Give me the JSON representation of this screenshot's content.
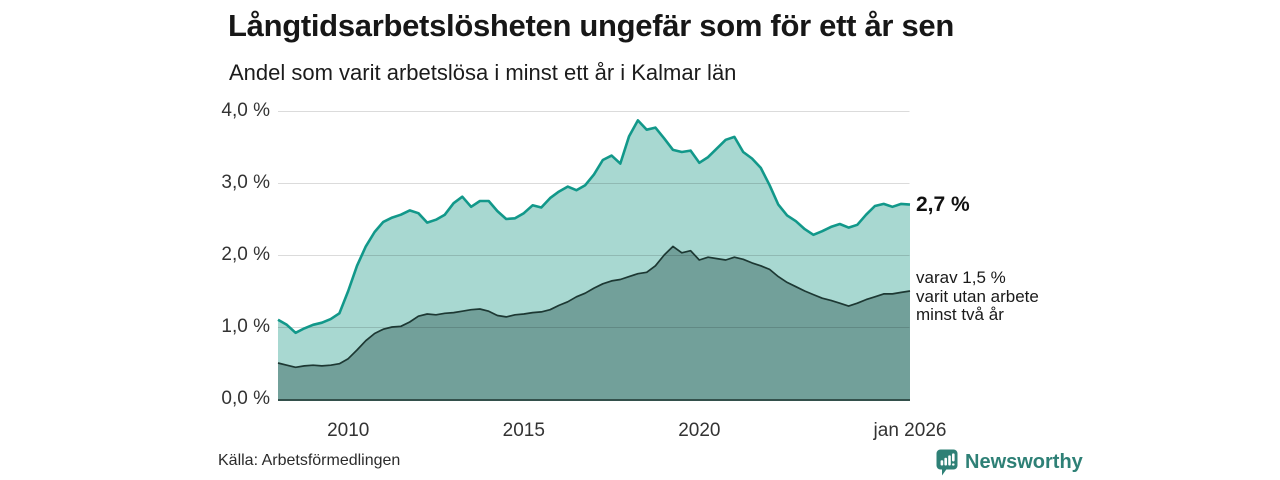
{
  "chart_data": {
    "type": "area",
    "title": "Långtidsarbetslösheten ungefär som för ett år sen",
    "subtitle": "Andel som varit arbetslösa i minst ett år i Kalmar län",
    "source": "Källa: Arbetsförmedlingen",
    "grid": true,
    "legend_position": "none",
    "colors": {
      "line_one_year": "#12988a",
      "fill_one_year": "#a8d8d1",
      "line_two_years": "#1d3833",
      "fill_two_years": "#72a09a",
      "gridline": "rgba(0,0,0,0.14)",
      "baseline": "#33504b"
    },
    "y_axis": {
      "range": [
        0,
        4
      ],
      "unit": "%",
      "ticks": [
        {
          "value": 0,
          "label": "0,0 %"
        },
        {
          "value": 1,
          "label": "1,0 %"
        },
        {
          "value": 2,
          "label": "2,0 %"
        },
        {
          "value": 3,
          "label": "3,0 %"
        },
        {
          "value": 4,
          "label": "4,0 %"
        }
      ]
    },
    "x_axis": {
      "range": [
        2008,
        2026
      ],
      "unit": "year",
      "ticks": [
        {
          "value": 2010,
          "label": "2010"
        },
        {
          "value": 2015,
          "label": "2015"
        },
        {
          "value": 2020,
          "label": "2020"
        },
        {
          "value": 2026,
          "label": "jan 2026"
        }
      ]
    },
    "series": [
      {
        "name": "Arbetslösa minst ett år",
        "latest_value": 2.7,
        "points": [
          [
            2008.0,
            1.1
          ],
          [
            2008.25,
            1.03
          ],
          [
            2008.5,
            0.92
          ],
          [
            2008.75,
            0.98
          ],
          [
            2009.0,
            1.03
          ],
          [
            2009.25,
            1.06
          ],
          [
            2009.5,
            1.11
          ],
          [
            2009.75,
            1.19
          ],
          [
            2010.0,
            1.5
          ],
          [
            2010.25,
            1.85
          ],
          [
            2010.5,
            2.12
          ],
          [
            2010.75,
            2.32
          ],
          [
            2011.0,
            2.46
          ],
          [
            2011.25,
            2.52
          ],
          [
            2011.5,
            2.56
          ],
          [
            2011.75,
            2.62
          ],
          [
            2012.0,
            2.58
          ],
          [
            2012.25,
            2.45
          ],
          [
            2012.5,
            2.49
          ],
          [
            2012.75,
            2.56
          ],
          [
            2013.0,
            2.72
          ],
          [
            2013.25,
            2.81
          ],
          [
            2013.5,
            2.67
          ],
          [
            2013.75,
            2.75
          ],
          [
            2014.0,
            2.75
          ],
          [
            2014.25,
            2.61
          ],
          [
            2014.5,
            2.5
          ],
          [
            2014.75,
            2.51
          ],
          [
            2015.0,
            2.58
          ],
          [
            2015.25,
            2.69
          ],
          [
            2015.5,
            2.66
          ],
          [
            2015.75,
            2.79
          ],
          [
            2016.0,
            2.88
          ],
          [
            2016.25,
            2.95
          ],
          [
            2016.5,
            2.9
          ],
          [
            2016.75,
            2.97
          ],
          [
            2017.0,
            3.12
          ],
          [
            2017.25,
            3.32
          ],
          [
            2017.5,
            3.38
          ],
          [
            2017.75,
            3.27
          ],
          [
            2018.0,
            3.65
          ],
          [
            2018.25,
            3.87
          ],
          [
            2018.5,
            3.74
          ],
          [
            2018.75,
            3.77
          ],
          [
            2019.0,
            3.62
          ],
          [
            2019.25,
            3.46
          ],
          [
            2019.5,
            3.43
          ],
          [
            2019.75,
            3.45
          ],
          [
            2020.0,
            3.28
          ],
          [
            2020.25,
            3.36
          ],
          [
            2020.5,
            3.48
          ],
          [
            2020.75,
            3.6
          ],
          [
            2021.0,
            3.64
          ],
          [
            2021.25,
            3.43
          ],
          [
            2021.5,
            3.34
          ],
          [
            2021.75,
            3.21
          ],
          [
            2022.0,
            2.97
          ],
          [
            2022.25,
            2.7
          ],
          [
            2022.5,
            2.55
          ],
          [
            2022.75,
            2.47
          ],
          [
            2023.0,
            2.36
          ],
          [
            2023.25,
            2.28
          ],
          [
            2023.5,
            2.33
          ],
          [
            2023.75,
            2.39
          ],
          [
            2024.0,
            2.43
          ],
          [
            2024.25,
            2.38
          ],
          [
            2024.5,
            2.42
          ],
          [
            2024.75,
            2.56
          ],
          [
            2025.0,
            2.68
          ],
          [
            2025.25,
            2.71
          ],
          [
            2025.5,
            2.67
          ],
          [
            2025.75,
            2.71
          ],
          [
            2026.0,
            2.7
          ]
        ]
      },
      {
        "name": "Arbetslösa minst två år",
        "latest_value": 1.5,
        "points": [
          [
            2008.0,
            0.5
          ],
          [
            2008.25,
            0.47
          ],
          [
            2008.5,
            0.44
          ],
          [
            2008.75,
            0.46
          ],
          [
            2009.0,
            0.47
          ],
          [
            2009.25,
            0.46
          ],
          [
            2009.5,
            0.47
          ],
          [
            2009.75,
            0.49
          ],
          [
            2010.0,
            0.56
          ],
          [
            2010.25,
            0.68
          ],
          [
            2010.5,
            0.81
          ],
          [
            2010.75,
            0.91
          ],
          [
            2011.0,
            0.97
          ],
          [
            2011.25,
            1.0
          ],
          [
            2011.5,
            1.01
          ],
          [
            2011.75,
            1.07
          ],
          [
            2012.0,
            1.15
          ],
          [
            2012.25,
            1.18
          ],
          [
            2012.5,
            1.17
          ],
          [
            2012.75,
            1.19
          ],
          [
            2013.0,
            1.2
          ],
          [
            2013.25,
            1.22
          ],
          [
            2013.5,
            1.24
          ],
          [
            2013.75,
            1.25
          ],
          [
            2014.0,
            1.22
          ],
          [
            2014.25,
            1.16
          ],
          [
            2014.5,
            1.14
          ],
          [
            2014.75,
            1.17
          ],
          [
            2015.0,
            1.18
          ],
          [
            2015.25,
            1.2
          ],
          [
            2015.5,
            1.21
          ],
          [
            2015.75,
            1.24
          ],
          [
            2016.0,
            1.3
          ],
          [
            2016.25,
            1.35
          ],
          [
            2016.5,
            1.42
          ],
          [
            2016.75,
            1.47
          ],
          [
            2017.0,
            1.54
          ],
          [
            2017.25,
            1.6
          ],
          [
            2017.5,
            1.64
          ],
          [
            2017.75,
            1.66
          ],
          [
            2018.0,
            1.7
          ],
          [
            2018.25,
            1.74
          ],
          [
            2018.5,
            1.76
          ],
          [
            2018.75,
            1.85
          ],
          [
            2019.0,
            2.0
          ],
          [
            2019.25,
            2.12
          ],
          [
            2019.5,
            2.03
          ],
          [
            2019.75,
            2.06
          ],
          [
            2020.0,
            1.93
          ],
          [
            2020.25,
            1.97
          ],
          [
            2020.5,
            1.95
          ],
          [
            2020.75,
            1.93
          ],
          [
            2021.0,
            1.97
          ],
          [
            2021.25,
            1.94
          ],
          [
            2021.5,
            1.89
          ],
          [
            2021.75,
            1.85
          ],
          [
            2022.0,
            1.8
          ],
          [
            2022.25,
            1.7
          ],
          [
            2022.5,
            1.62
          ],
          [
            2022.75,
            1.56
          ],
          [
            2023.0,
            1.5
          ],
          [
            2023.25,
            1.45
          ],
          [
            2023.5,
            1.4
          ],
          [
            2023.75,
            1.37
          ],
          [
            2024.0,
            1.33
          ],
          [
            2024.25,
            1.29
          ],
          [
            2024.5,
            1.33
          ],
          [
            2024.75,
            1.38
          ],
          [
            2025.0,
            1.42
          ],
          [
            2025.25,
            1.46
          ],
          [
            2025.5,
            1.46
          ],
          [
            2025.75,
            1.48
          ],
          [
            2026.0,
            1.5
          ]
        ]
      }
    ],
    "annotations": [
      {
        "text": "2,7 %",
        "anchor_value": 2.7,
        "style": "bold"
      },
      {
        "lines": [
          "varav 1,5 %",
          "varit utan arbete",
          "minst två år"
        ],
        "anchor_value": 1.5
      }
    ]
  },
  "branding": {
    "label": "Newsworthy",
    "icon": "newsworthy-bar-chart-bubble-icon",
    "color": "#2e8076"
  }
}
